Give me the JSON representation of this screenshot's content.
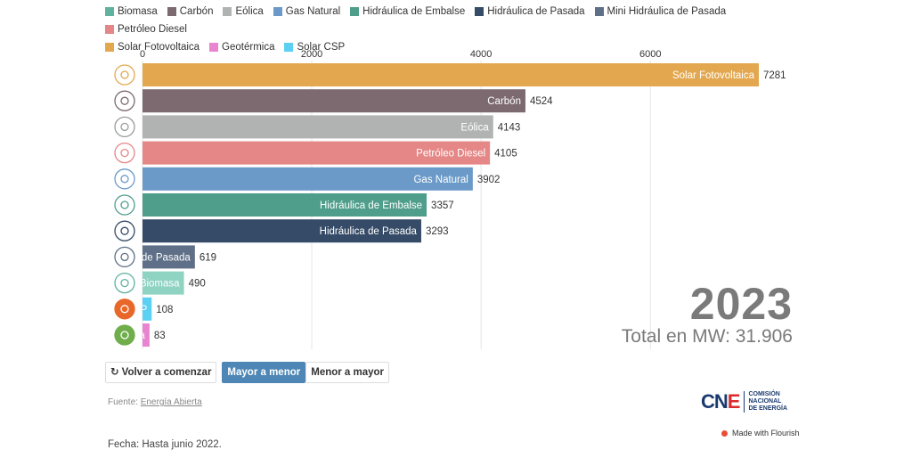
{
  "chart_data": {
    "type": "bar",
    "orientation": "horizontal",
    "title": "",
    "year": "2023",
    "total_label": "Total en MW: 31.906",
    "xlim": [
      0,
      7281
    ],
    "x_ticks": [
      0,
      2000,
      4000,
      6000
    ],
    "legend": [
      {
        "name": "Biomasa",
        "color": "#5fb39d"
      },
      {
        "name": "Carbón",
        "color": "#7c6a70"
      },
      {
        "name": "Eólica",
        "color": "#b1b3b3"
      },
      {
        "name": "Gas Natural",
        "color": "#6b9ac8"
      },
      {
        "name": "Hidráulica de Embalse",
        "color": "#4f9e8b"
      },
      {
        "name": "Hidráulica de Pasada",
        "color": "#354b67"
      },
      {
        "name": "Mini Hidráulica de Pasada",
        "color": "#5e6f87"
      },
      {
        "name": "Petróleo Diesel",
        "color": "#e58786"
      },
      {
        "name": "Solar Fotovoltaica",
        "color": "#e3a84f"
      },
      {
        "name": "Geotérmica",
        "color": "#e884d0"
      },
      {
        "name": "Solar CSP",
        "color": "#5cd0f2"
      }
    ],
    "series": [
      {
        "name": "Solar Fotovoltaica",
        "value": 7281,
        "color": "#e3a84f",
        "icon": "solar-panel-icon",
        "icon_color": "#e3a84f"
      },
      {
        "name": "Carbón",
        "value": 4524,
        "color": "#7c6a70",
        "icon": "coal-cart-icon",
        "icon_color": "#7c6a70"
      },
      {
        "name": "Eólica",
        "value": 4143,
        "color": "#b1b3b3",
        "icon": "wind-turbine-icon",
        "icon_color": "#9a9c9c"
      },
      {
        "name": "Petróleo Diesel",
        "value": 4105,
        "color": "#e58786",
        "icon": "fuel-pump-icon",
        "icon_color": "#e58786"
      },
      {
        "name": "Gas Natural",
        "value": 3902,
        "color": "#6b9ac8",
        "icon": "flame-icon",
        "icon_color": "#6b9ac8"
      },
      {
        "name": "Hidráulica de Embalse",
        "value": 3357,
        "color": "#4f9e8b",
        "icon": "dam-icon",
        "icon_color": "#4f9e8b"
      },
      {
        "name": "Hidráulica de Pasada",
        "value": 3293,
        "color": "#354b67",
        "icon": "turbine-icon",
        "icon_color": "#354b67"
      },
      {
        "name": "Mini Hidráulica de Pasada",
        "value": 619,
        "color": "#5e6f87",
        "icon": "mini-turbine-icon",
        "icon_color": "#5e6f87"
      },
      {
        "name": "Biomasa",
        "value": 490,
        "color": "#8fd3c3",
        "icon": "biomass-flask-icon",
        "icon_color": "#5fb39d"
      },
      {
        "name": "Solar CSP",
        "value": 108,
        "color": "#5cd0f2",
        "icon": "solar-csp-icon",
        "icon_color": "#e8682a"
      },
      {
        "name": "Geotérmica",
        "value": 83,
        "color": "#e884d0",
        "icon": "geothermal-icon",
        "icon_color": "#6fae4a"
      }
    ]
  },
  "controls": {
    "restart_label": "Volver a comenzar",
    "desc_label": "Mayor a menor",
    "asc_label": "Menor a mayor"
  },
  "footer": {
    "source_prefix": "Fuente: ",
    "source_link": "Energía Abierta",
    "fecha": "Fecha: Hasta junio 2022.",
    "logo_text_c": "C",
    "logo_text_n": "N",
    "logo_text_e": "E",
    "logo_sub_1": "COMISIÓN",
    "logo_sub_2": "NACIONAL",
    "logo_sub_3": "DE ENERGÍA",
    "flourish": "Made with Flourish"
  }
}
